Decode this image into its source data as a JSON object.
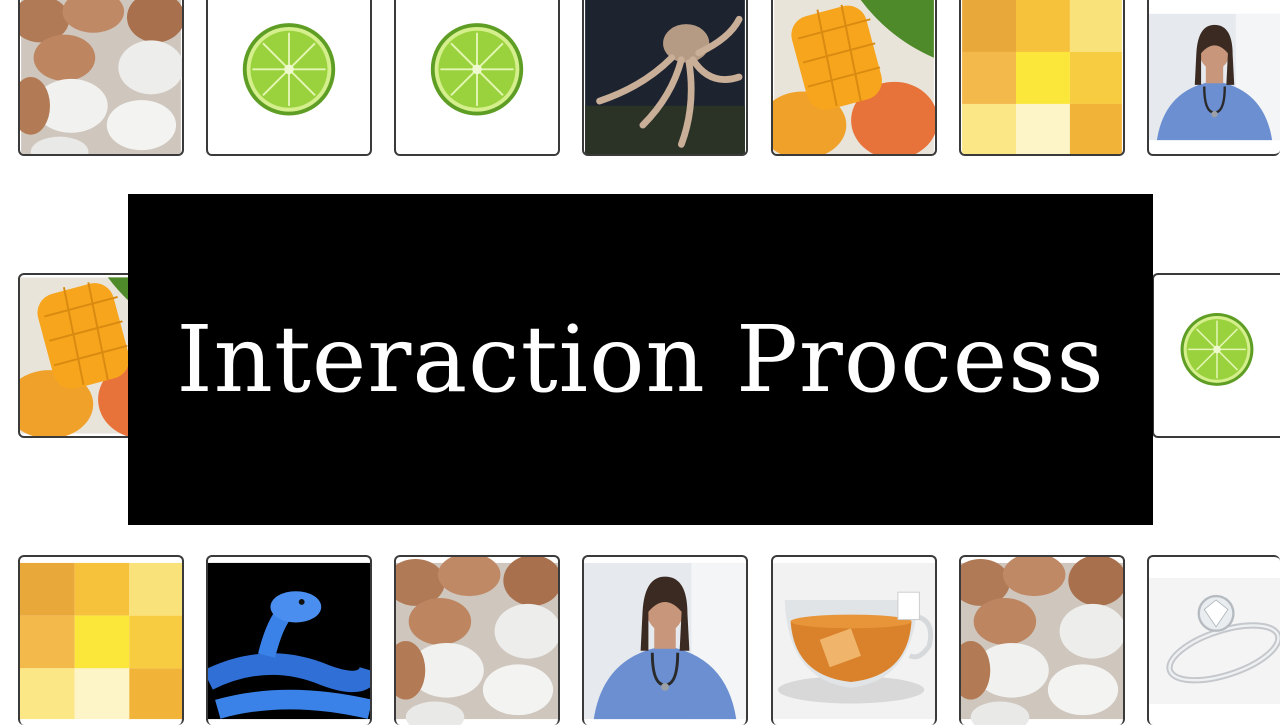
{
  "title": "Interaction Process",
  "colors": {
    "title_bg": "#000000",
    "title_fg": "#ffffff",
    "tile_border": "#3a3a3a"
  },
  "tiles": {
    "row1": [
      "eggs",
      "lime",
      "lime",
      "octopus",
      "mango",
      "yellow-grid",
      "nurse"
    ],
    "row2": [
      "mango",
      "lime"
    ],
    "row3": [
      "yellow-grid",
      "blue-snake",
      "eggs",
      "nurse",
      "tea-cup",
      "eggs",
      "diamond-ring"
    ]
  }
}
